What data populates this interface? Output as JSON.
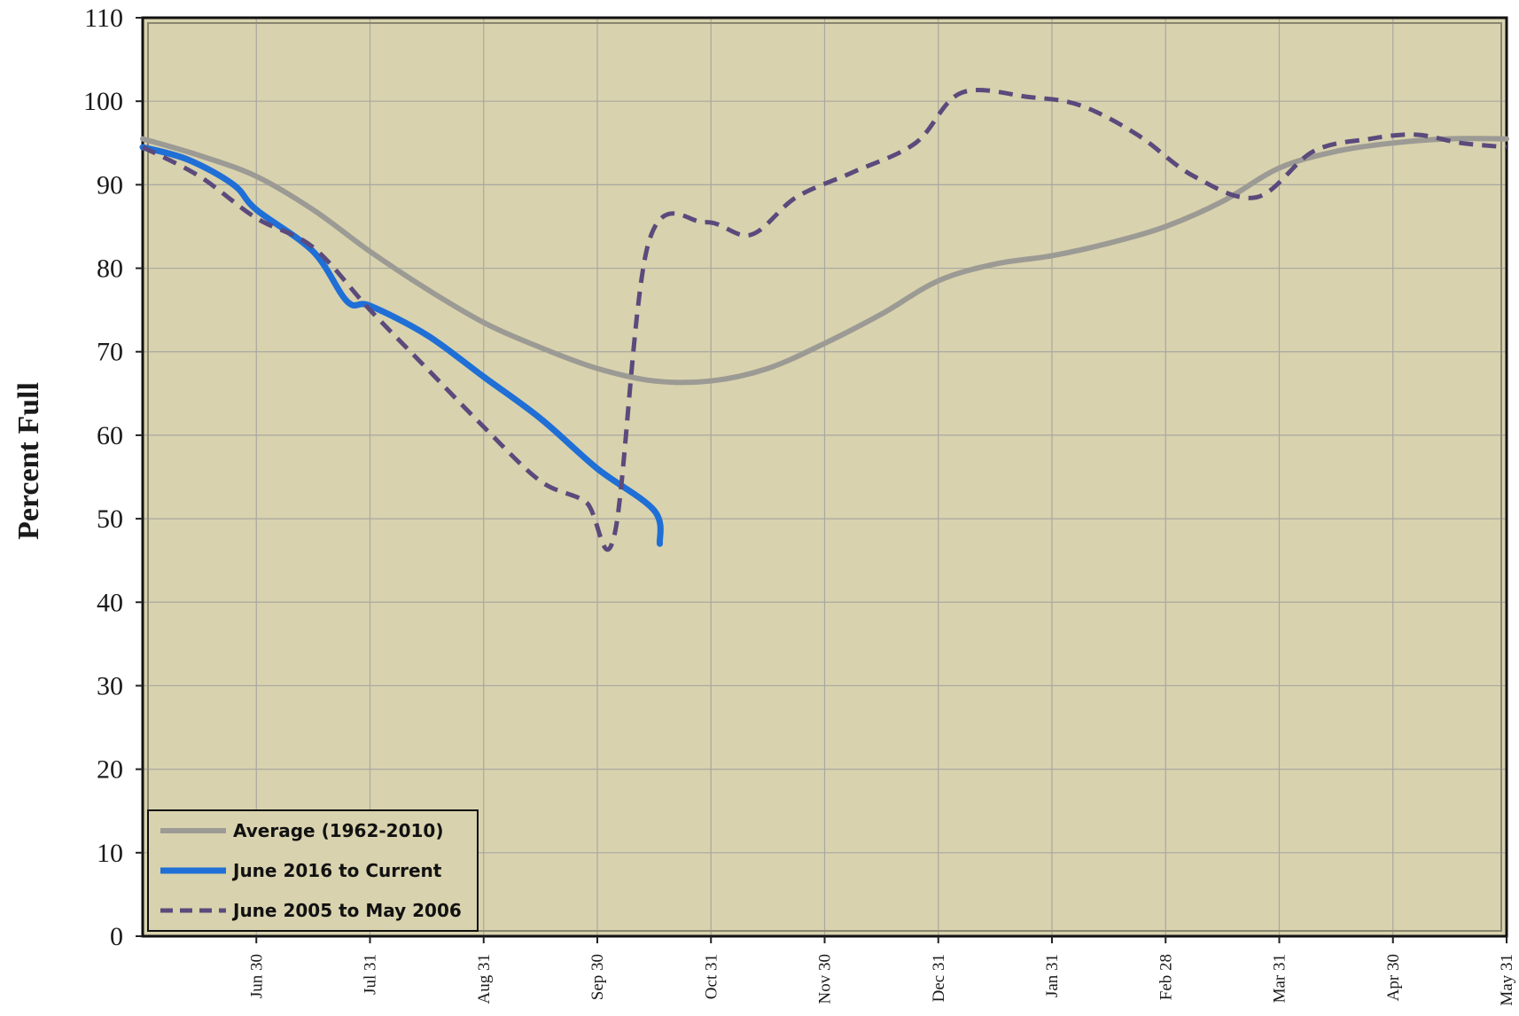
{
  "chart_data": {
    "type": "line",
    "title": "",
    "xlabel": "",
    "ylabel": "Percent Full",
    "ylim": [
      0,
      110
    ],
    "yticks": [
      0,
      10,
      20,
      30,
      40,
      50,
      60,
      70,
      80,
      90,
      100,
      110
    ],
    "xlim": [
      0,
      12
    ],
    "x_tick_labels": [
      "Jun 30",
      "Jul 31",
      "Aug 31",
      "Sep 30",
      "Oct 31",
      "Nov 30",
      "Dec 31",
      "Jan 31",
      "Feb 28",
      "Mar 31",
      "Apr 30",
      "May 31"
    ],
    "grid": true,
    "legend_position": "bottom-left",
    "colors": {
      "plot_background": "#d8d2ae",
      "grid": "#a9a8a0",
      "average": "#9c9a94",
      "current": "#1f6fd6",
      "y2005": "#5b4a7c"
    },
    "series": [
      {
        "name": "Average (1962-2010)",
        "style": "solid",
        "color": "#9c9a94",
        "x": [
          0,
          0.5,
          1,
          1.5,
          2,
          2.5,
          3,
          3.5,
          4,
          4.5,
          5,
          5.5,
          6,
          6.5,
          7,
          7.5,
          8,
          8.5,
          9,
          9.5,
          10,
          10.5,
          11,
          11.5,
          12
        ],
        "y": [
          95.5,
          93.5,
          91,
          87,
          82,
          77.5,
          73.5,
          70.5,
          68,
          66.5,
          66.5,
          68,
          71,
          74.5,
          78.5,
          80.5,
          81.5,
          83,
          85,
          88,
          92,
          94,
          95,
          95.5,
          95.5
        ]
      },
      {
        "name": "June 2016 to Current",
        "style": "solid",
        "color": "#1f6fd6",
        "x": [
          0,
          0.4,
          0.8,
          1,
          1.5,
          1.8,
          2,
          2.5,
          3,
          3.5,
          4,
          4.5,
          4.55
        ],
        "y": [
          94.5,
          93,
          90,
          87,
          82,
          76,
          75.5,
          72,
          67,
          62,
          56,
          51,
          47
        ]
      },
      {
        "name": "June 2005 to May 2006",
        "style": "dashed",
        "color": "#5b4a7c",
        "x": [
          0,
          0.5,
          1,
          1.5,
          2,
          2.5,
          3,
          3.5,
          3.9,
          4.15,
          4.45,
          4.95,
          5.35,
          5.75,
          6.25,
          6.8,
          7.2,
          7.8,
          8.25,
          8.75,
          9.25,
          9.8,
          10.3,
          10.8,
          11.2,
          11.6,
          12
        ],
        "y": [
          94.5,
          91,
          86,
          82.5,
          75,
          68,
          61,
          54.5,
          52,
          48,
          83,
          85.5,
          84,
          88.5,
          91.5,
          95,
          101,
          100.5,
          99.5,
          96,
          91,
          88.5,
          94,
          95.5,
          96,
          95,
          94.5
        ]
      }
    ]
  }
}
